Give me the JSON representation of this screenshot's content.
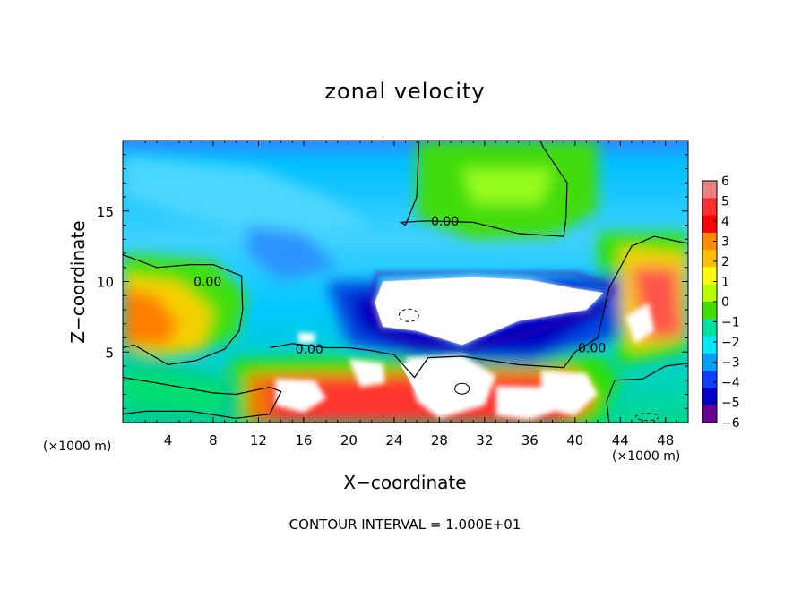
{
  "chart_data": {
    "type": "heatmap",
    "title": "zonal velocity",
    "xlabel": "X−coordinate",
    "ylabel": "Z−coordinate",
    "x_unit_label_left": "(×1000 m)",
    "x_unit_label_right": "(×1000 m)",
    "footnote": "CONTOUR INTERVAL = 1.000E+01",
    "xlim": [
      0,
      50
    ],
    "ylim": [
      0,
      20
    ],
    "x_ticks": [
      "4",
      "8",
      "12",
      "16",
      "20",
      "24",
      "28",
      "32",
      "36",
      "40",
      "44",
      "48"
    ],
    "y_ticks": [
      "5",
      "10",
      "15"
    ],
    "colorbar": {
      "range": [
        -6,
        6
      ],
      "tick_labels": [
        "6",
        "5",
        "4",
        "3",
        "2",
        "1",
        "0",
        "−1",
        "−2",
        "−3",
        "−4",
        "−5",
        "−6"
      ],
      "colors": [
        "#f08080",
        "#ff3030",
        "#ff0000",
        "#ff8c00",
        "#ffc000",
        "#ffff00",
        "#b4ff00",
        "#44dd00",
        "#00e0a0",
        "#00e8ff",
        "#00a0ff",
        "#1040ff",
        "#0000c8",
        "#6a0090"
      ]
    },
    "contour_labels": [
      {
        "text": "0.00",
        "x": 28.5,
        "z": 14.3
      },
      {
        "text": "0.00",
        "x": 7.5,
        "z": 10.0
      },
      {
        "text": "0.00",
        "x": 16.5,
        "z": 5.2
      },
      {
        "text": "0.00",
        "x": 41.5,
        "z": 5.3
      }
    ],
    "regions": [
      {
        "field": "green",
        "x": [
          26,
          42
        ],
        "z": [
          13,
          20
        ]
      },
      {
        "field": "negative-strong",
        "x": [
          20,
          42
        ],
        "z": [
          4,
          11
        ]
      },
      {
        "field": "positive-strong",
        "x": [
          0,
          8
        ],
        "z": [
          4,
          11
        ]
      },
      {
        "field": "positive-strong",
        "x": [
          44,
          50
        ],
        "z": [
          3,
          13
        ]
      },
      {
        "field": "positive-strong",
        "x": [
          10,
          42
        ],
        "z": [
          0,
          5
        ]
      }
    ]
  }
}
